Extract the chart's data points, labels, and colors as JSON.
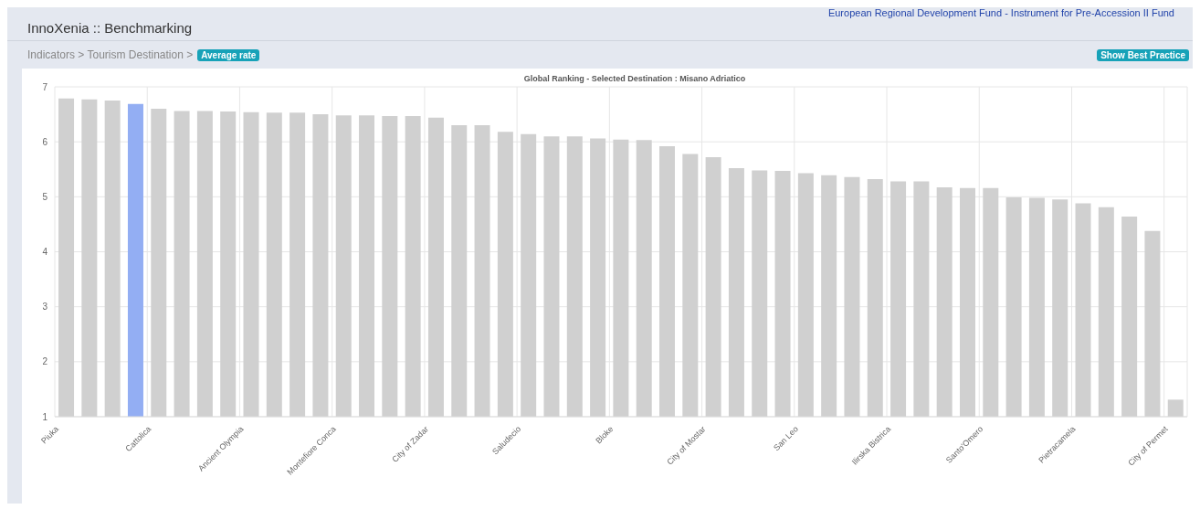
{
  "chart_data": {
    "type": "bar",
    "title": "Global Ranking - Selected Destination : Misano Adriatico",
    "annotations": [
      "European Regional Development Fund - Instrument for Pre-Accession II Fund",
      "InnoXenia :: Benchmarking",
      "Indicators > Tourism Destination >",
      "Average rate",
      "Show Best Practice"
    ],
    "categories": [
      "Piuka",
      null,
      null,
      null,
      "Cattolica",
      null,
      null,
      null,
      "Ancient Olympia",
      null,
      null,
      null,
      "Montefiore Conca",
      null,
      null,
      null,
      "City of Zadar",
      null,
      null,
      null,
      "Saludecio",
      null,
      null,
      null,
      "Bloke",
      null,
      null,
      null,
      "City of Mostar",
      null,
      null,
      null,
      "San Leo",
      null,
      null,
      null,
      "Ilirska Bistrica",
      null,
      null,
      null,
      "Santo'Omero",
      null,
      null,
      null,
      "Pietracamela",
      null,
      null,
      null,
      "City of Permet"
    ],
    "values": [
      6.79,
      6.77,
      6.75,
      6.69,
      6.6,
      6.56,
      6.56,
      6.55,
      6.54,
      6.53,
      6.53,
      6.5,
      6.48,
      6.48,
      6.47,
      6.47,
      6.44,
      6.3,
      6.3,
      6.18,
      6.14,
      6.1,
      6.1,
      6.06,
      6.04,
      6.03,
      5.92,
      5.78,
      5.72,
      5.52,
      5.48,
      5.47,
      5.43,
      5.39,
      5.36,
      5.32,
      5.28,
      5.28,
      5.17,
      5.16,
      5.16,
      4.99,
      4.98,
      4.95,
      4.88,
      4.81,
      4.64,
      4.38,
      1.31
    ],
    "colors": [
      "#d0d0d0",
      "#d0d0d0",
      "#d0d0d0",
      "#93aef3",
      "#d0d0d0",
      "#d0d0d0",
      "#d0d0d0",
      "#d0d0d0",
      "#d0d0d0",
      "#d0d0d0",
      "#d0d0d0",
      "#d0d0d0",
      "#d0d0d0",
      "#d0d0d0",
      "#d0d0d0",
      "#d0d0d0",
      "#d0d0d0",
      "#d0d0d0",
      "#d0d0d0",
      "#d0d0d0",
      "#d0d0d0",
      "#d0d0d0",
      "#d0d0d0",
      "#d0d0d0",
      "#d0d0d0",
      "#d0d0d0",
      "#d0d0d0",
      "#d0d0d0",
      "#d0d0d0",
      "#d0d0d0",
      "#d0d0d0",
      "#d0d0d0",
      "#d0d0d0",
      "#d0d0d0",
      "#d0d0d0",
      "#d0d0d0",
      "#d0d0d0",
      "#d0d0d0",
      "#d0d0d0",
      "#d0d0d0",
      "#d0d0d0",
      "#d0d0d0",
      "#d0d0d0",
      "#d0d0d0",
      "#d0d0d0",
      "#d0d0d0",
      "#d0d0d0",
      "#d0d0d0",
      "#d0d0d0"
    ],
    "ylim": [
      1,
      7
    ],
    "yticks": [
      1,
      2,
      3,
      4,
      5,
      6,
      7
    ],
    "grid": true,
    "legend": false
  }
}
